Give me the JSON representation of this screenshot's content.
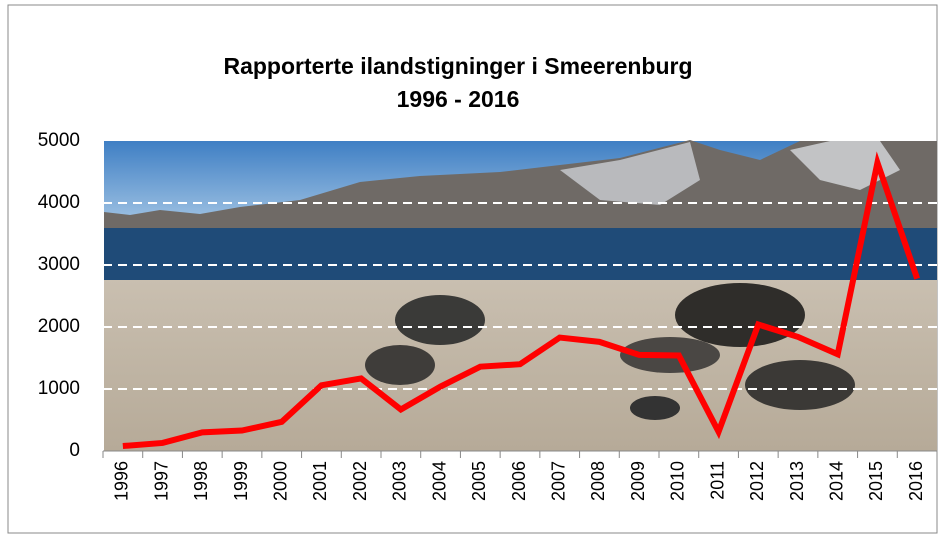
{
  "chart_data": {
    "type": "line",
    "title": [
      "Rapporterte ilandstigninger i Smeerenburg",
      "1996 - 2016"
    ],
    "categories": [
      "1996",
      "1997",
      "1998",
      "1999",
      "2000",
      "2001",
      "2002",
      "2003",
      "2004",
      "2005",
      "2006",
      "2007",
      "2008",
      "2009",
      "2010",
      "2011",
      "2012",
      "2013",
      "2014",
      "2015",
      "2016"
    ],
    "values": [
      80,
      130,
      300,
      330,
      470,
      1060,
      1170,
      670,
      1040,
      1360,
      1400,
      1830,
      1760,
      1550,
      1540,
      310,
      2040,
      1840,
      1560,
      4650,
      2780
    ],
    "color": "#ff0000",
    "ylim": [
      0,
      5000
    ],
    "yticks": [
      0,
      1000,
      2000,
      3000,
      4000,
      5000
    ],
    "grid": true
  }
}
